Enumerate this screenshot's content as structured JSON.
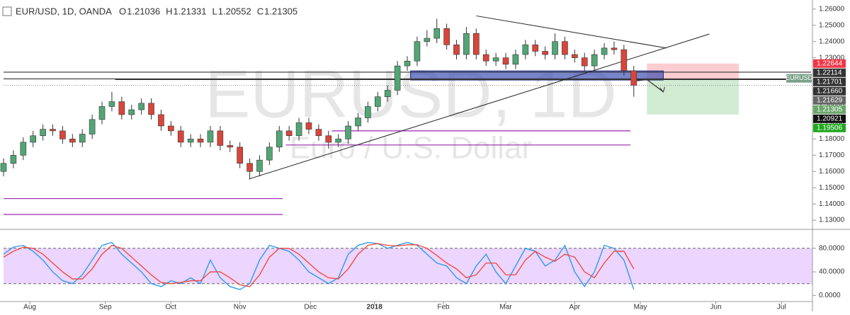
{
  "chart_data": {
    "type": "candlestick",
    "title": "EUR/USD, 1D, OANDA",
    "ohlc_header": [
      {
        "prefix": "O",
        "value": 1.21036
      },
      {
        "prefix": "H",
        "value": 1.21331
      },
      {
        "prefix": "L",
        "value": 1.20552
      },
      {
        "prefix": "C",
        "value": 1.21305
      }
    ],
    "watermark": "EURUSD, 1D",
    "watermark_subtitle": "Euro / U.S. Dollar",
    "symbol_tag": "EURUSD",
    "up_color": "#53a576",
    "down_color": "#d9453a",
    "xlim": [
      0,
      246
    ],
    "xticks": [
      {
        "value": 8,
        "label": "Aug"
      },
      {
        "value": 31,
        "label": "Sep"
      },
      {
        "value": 51,
        "label": "Oct"
      },
      {
        "value": 72,
        "label": "Nov"
      },
      {
        "value": 93.5,
        "label": "Dec"
      },
      {
        "value": 113,
        "label": "2018"
      },
      {
        "value": 134,
        "label": "Feb"
      },
      {
        "value": 153,
        "label": "Mar"
      },
      {
        "value": 174,
        "label": "Apr"
      },
      {
        "value": 194,
        "label": "May"
      },
      {
        "value": 217,
        "label": "Jun"
      },
      {
        "value": 237,
        "label": "Jul"
      }
    ],
    "ylim": [
      1.1261,
      1.2634
    ],
    "yticks": [
      {
        "value": 1.13,
        "label": "1.13000"
      },
      {
        "value": 1.14,
        "label": "1.14000"
      },
      {
        "value": 1.15,
        "label": "1.15000"
      },
      {
        "value": 1.16,
        "label": "1.16000"
      },
      {
        "value": 1.17,
        "label": "1.17000"
      },
      {
        "value": 1.18,
        "label": "1.18000"
      },
      {
        "value": 1.19,
        "label": "1.19000"
      },
      {
        "value": 1.2,
        "label": "1.20000"
      },
      {
        "value": 1.21,
        "label": "1.21000"
      },
      {
        "value": 1.22,
        "label": "1.22000"
      },
      {
        "value": 1.23,
        "label": "1.23000"
      },
      {
        "value": 1.24,
        "label": "1.24000"
      },
      {
        "value": 1.25,
        "label": "1.25000"
      },
      {
        "value": 1.26,
        "label": "1.26000"
      }
    ],
    "x": [
      0,
      3,
      6,
      9,
      12,
      15,
      18,
      21,
      24,
      27,
      30,
      33,
      36,
      39,
      42,
      45,
      48,
      51,
      54,
      57,
      60,
      63,
      66,
      69,
      72,
      75,
      78,
      81,
      84,
      87,
      90,
      93,
      96,
      99,
      102,
      105,
      108,
      111,
      114,
      117,
      120,
      123,
      126,
      129,
      132,
      135,
      138,
      141,
      144,
      147,
      150,
      153,
      156,
      159,
      162,
      165,
      168,
      171,
      174,
      177,
      180,
      183,
      186,
      189,
      192
    ],
    "open": [
      1.16,
      1.165,
      1.17,
      1.178,
      1.182,
      1.186,
      1.185,
      1.18,
      1.178,
      1.183,
      1.192,
      1.2,
      1.203,
      1.195,
      1.198,
      1.202,
      1.195,
      1.188,
      1.185,
      1.178,
      1.18,
      1.178,
      1.185,
      1.176,
      1.175,
      1.165,
      1.16,
      1.167,
      1.175,
      1.185,
      1.182,
      1.19,
      1.186,
      1.182,
      1.178,
      1.18,
      1.188,
      1.193,
      1.2,
      1.206,
      1.21,
      1.225,
      1.228,
      1.24,
      1.242,
      1.248,
      1.238,
      1.232,
      1.245,
      1.232,
      1.228,
      1.23,
      1.226,
      1.232,
      1.238,
      1.234,
      1.232,
      1.24,
      1.232,
      1.23,
      1.225,
      1.232,
      1.236,
      1.235,
      1.222
    ],
    "high": [
      1.168,
      1.173,
      1.181,
      1.185,
      1.189,
      1.189,
      1.188,
      1.183,
      1.186,
      1.195,
      1.203,
      1.209,
      1.206,
      1.201,
      1.205,
      1.205,
      1.198,
      1.191,
      1.188,
      1.183,
      1.183,
      1.188,
      1.188,
      1.179,
      1.178,
      1.168,
      1.17,
      1.178,
      1.188,
      1.188,
      1.193,
      1.193,
      1.189,
      1.185,
      1.183,
      1.191,
      1.196,
      1.203,
      1.209,
      1.213,
      1.228,
      1.231,
      1.243,
      1.247,
      1.254,
      1.251,
      1.241,
      1.249,
      1.248,
      1.235,
      1.233,
      1.233,
      1.235,
      1.241,
      1.241,
      1.237,
      1.245,
      1.243,
      1.235,
      1.233,
      1.235,
      1.239,
      1.24,
      1.238,
      1.225
    ],
    "low": [
      1.157,
      1.162,
      1.167,
      1.175,
      1.179,
      1.182,
      1.177,
      1.175,
      1.175,
      1.18,
      1.189,
      1.197,
      1.192,
      1.192,
      1.195,
      1.192,
      1.185,
      1.182,
      1.175,
      1.175,
      1.175,
      1.175,
      1.173,
      1.172,
      1.162,
      1.155,
      1.157,
      1.164,
      1.172,
      1.179,
      1.179,
      1.183,
      1.179,
      1.174,
      1.175,
      1.177,
      1.185,
      1.19,
      1.197,
      1.203,
      1.207,
      1.222,
      1.225,
      1.237,
      1.239,
      1.235,
      1.229,
      1.229,
      1.229,
      1.225,
      1.225,
      1.223,
      1.223,
      1.229,
      1.231,
      1.229,
      1.229,
      1.229,
      1.227,
      1.222,
      1.222,
      1.229,
      1.232,
      1.219,
      1.206
    ],
    "close": [
      1.165,
      1.17,
      1.178,
      1.182,
      1.186,
      1.185,
      1.18,
      1.178,
      1.183,
      1.192,
      1.2,
      1.203,
      1.195,
      1.198,
      1.202,
      1.195,
      1.188,
      1.185,
      1.178,
      1.18,
      1.178,
      1.185,
      1.176,
      1.175,
      1.165,
      1.16,
      1.167,
      1.175,
      1.185,
      1.182,
      1.19,
      1.186,
      1.182,
      1.178,
      1.18,
      1.188,
      1.193,
      1.2,
      1.206,
      1.21,
      1.225,
      1.228,
      1.24,
      1.242,
      1.248,
      1.238,
      1.232,
      1.245,
      1.232,
      1.228,
      1.23,
      1.226,
      1.232,
      1.238,
      1.234,
      1.232,
      1.24,
      1.232,
      1.23,
      1.225,
      1.232,
      1.236,
      1.235,
      1.222,
      1.213
    ],
    "price_labels": [
      {
        "value": 1.22644,
        "label": "1.22644",
        "color": "#f23645"
      },
      {
        "value": 1.22114,
        "label": "1.22114",
        "color": "#333333"
      },
      {
        "value": 1.21701,
        "label": "1.21701",
        "color": "#333333"
      },
      {
        "value": 1.2166,
        "label": "1.21660",
        "color": "#333333"
      },
      {
        "value": 1.21629,
        "label": "1.21629",
        "color": "#666666"
      },
      {
        "value": 1.21305,
        "label": "1.21305",
        "color": "#6aa56a"
      },
      {
        "value": 1.20921,
        "label": "1.20921",
        "color": "#111111"
      },
      {
        "value": 1.19506,
        "label": "1.19506",
        "color": "#1fa81f"
      }
    ],
    "hlines": [
      {
        "value": 1.22114,
        "x": [
          0,
          246
        ],
        "color": "#333333"
      },
      {
        "value": 1.21701,
        "x": [
          0,
          246
        ],
        "color": "#333333"
      },
      {
        "value": 1.2166,
        "x": [
          34,
          246
        ],
        "color": "#333333"
      },
      {
        "value": 1.185,
        "x": [
          100,
          191
        ],
        "color": "#9c27b0"
      },
      {
        "value": 1.1763,
        "x": [
          86,
          191
        ],
        "color": "#9c27b0"
      },
      {
        "value": 1.1433,
        "x": [
          0,
          85
        ],
        "color": "#9c27b0"
      },
      {
        "value": 1.1335,
        "x": [
          0,
          85
        ],
        "color": "#9c27b0"
      }
    ],
    "trendlines": [
      {
        "x": [
          75,
          215
        ],
        "y": [
          1.1555,
          1.2446
        ]
      },
      {
        "x": [
          144,
          202
        ],
        "y": [
          1.2558,
          1.236
        ]
      }
    ],
    "zone": {
      "x": [
        124,
        201
      ],
      "y": [
        1.2163,
        1.2219
      ],
      "color": "#3f51b5"
    },
    "position": {
      "x": [
        196,
        224
      ],
      "entry": 1.2166,
      "stop": 1.22644,
      "target": 1.19506
    },
    "arrow": {
      "x": [
        193,
        196,
        201
      ],
      "y": [
        1.2158,
        1.2166,
        1.209
      ]
    },
    "oscillator": {
      "ylim": [
        -8,
        105
      ],
      "yticks": [
        {
          "value": 0,
          "label": "0.0000"
        },
        {
          "value": 40,
          "label": "40.0000"
        },
        {
          "value": 80,
          "label": "80.0000"
        }
      ],
      "band": [
        20,
        80
      ],
      "series": [
        {
          "color": "#2196f3",
          "values": [
            70,
            82,
            85,
            75,
            60,
            40,
            25,
            20,
            35,
            60,
            85,
            90,
            70,
            55,
            40,
            20,
            15,
            25,
            20,
            30,
            20,
            60,
            30,
            15,
            10,
            20,
            60,
            85,
            80,
            75,
            60,
            40,
            30,
            20,
            30,
            70,
            85,
            90,
            88,
            80,
            85,
            90,
            85,
            70,
            55,
            50,
            30,
            20,
            50,
            70,
            40,
            20,
            50,
            80,
            75,
            50,
            60,
            85,
            40,
            15,
            40,
            85,
            80,
            60,
            10
          ]
        },
        {
          "color": "#f44336",
          "values": [
            65,
            75,
            82,
            80,
            70,
            55,
            40,
            28,
            28,
            45,
            70,
            85,
            80,
            65,
            50,
            35,
            22,
            20,
            22,
            25,
            25,
            40,
            40,
            30,
            18,
            15,
            35,
            65,
            80,
            80,
            70,
            55,
            40,
            30,
            28,
            45,
            70,
            85,
            88,
            85,
            84,
            86,
            86,
            80,
            68,
            55,
            45,
            30,
            35,
            55,
            55,
            35,
            35,
            60,
            75,
            65,
            58,
            70,
            65,
            40,
            30,
            55,
            75,
            75,
            45
          ]
        }
      ]
    }
  }
}
